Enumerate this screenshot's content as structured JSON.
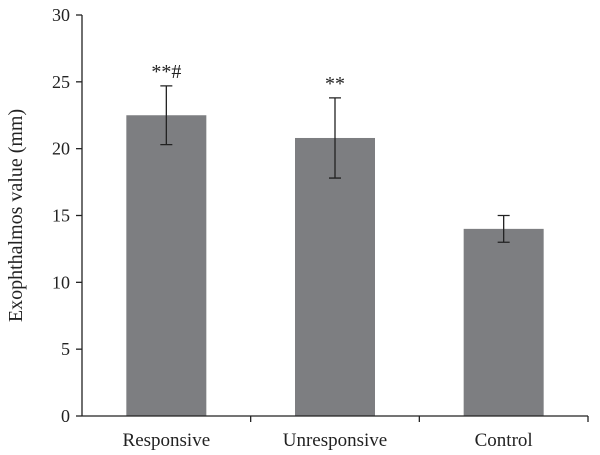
{
  "chart_data": {
    "type": "bar",
    "ylabel": "Exophthalmos value (mm)",
    "xlabel": "",
    "ylim": [
      0,
      30
    ],
    "yticks": [
      0,
      5,
      10,
      15,
      20,
      25,
      30
    ],
    "categories": [
      "Responsive",
      "Unresponsive",
      "Control"
    ],
    "values": [
      22.5,
      20.8,
      14.0
    ],
    "error": [
      2.2,
      3.0,
      1.0
    ],
    "annotations": [
      "**#",
      "**",
      ""
    ],
    "bar_color": "#7d7e81",
    "grid": false,
    "legend": "none"
  }
}
